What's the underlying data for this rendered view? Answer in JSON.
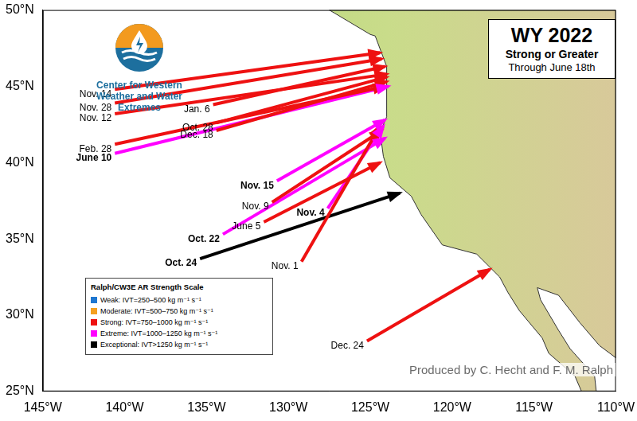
{
  "chart_data": {
    "type": "map",
    "title": "WY 2022",
    "subtitle": "Strong or Greater",
    "period": "Through June 18th",
    "logo_text": "Center for Western Weather and Water Extremes",
    "credit": "Produced by C. Hecht and F. M. Ralph",
    "legend_title": "Ralph/CW3E AR Strength Scale",
    "legend": "bottom left",
    "grid": false,
    "xlim": [
      -145,
      -110
    ],
    "xticks": [
      {
        "value": -145,
        "label": "145°W"
      },
      {
        "value": -140,
        "label": "140°W"
      },
      {
        "value": -135,
        "label": "135°W"
      },
      {
        "value": -130,
        "label": "130°W"
      },
      {
        "value": -125,
        "label": "125°W"
      },
      {
        "value": -120,
        "label": "120°W"
      },
      {
        "value": -115,
        "label": "115°W"
      },
      {
        "value": -110,
        "label": "110°W"
      }
    ],
    "ylim": [
      25,
      50
    ],
    "yticks": [
      {
        "value": 25,
        "label": "25°N"
      },
      {
        "value": 30,
        "label": "30°N"
      },
      {
        "value": 35,
        "label": "35°N"
      },
      {
        "value": 40,
        "label": "40°N"
      },
      {
        "value": 45,
        "label": "45°N"
      },
      {
        "value": 50,
        "label": "50°N"
      }
    ],
    "coastline": [
      [
        -127.5,
        50
      ],
      [
        -125.0,
        48.4
      ],
      [
        -124.7,
        48.3
      ],
      [
        -124.0,
        46.3
      ],
      [
        -124.0,
        43.0
      ],
      [
        -124.4,
        42.0
      ],
      [
        -124.2,
        40.4
      ],
      [
        -123.8,
        39.0
      ],
      [
        -122.5,
        37.8
      ],
      [
        -121.9,
        36.6
      ],
      [
        -120.6,
        34.6
      ],
      [
        -118.5,
        34.0
      ],
      [
        -117.1,
        32.5
      ],
      [
        -116.6,
        31.5
      ],
      [
        -115.9,
        30.3
      ],
      [
        -114.5,
        28.5
      ],
      [
        -114.1,
        27.5
      ],
      [
        -112.5,
        26.0
      ],
      [
        -112.1,
        25.0
      ],
      [
        -111.2,
        25.0
      ],
      [
        -111.3,
        26.0
      ],
      [
        -112.8,
        27.8
      ],
      [
        -113.5,
        29.0
      ],
      [
        -114.6,
        31.0
      ],
      [
        -114.8,
        31.8
      ],
      [
        -113.5,
        31.3
      ],
      [
        -112.2,
        29.5
      ],
      [
        -111.0,
        28.0
      ],
      [
        -110.0,
        27.2
      ],
      [
        -110.0,
        50.0
      ]
    ],
    "series": [
      {
        "name": "Weak: IVT=250–500 kg m⁻¹ s⁻¹",
        "color": "#1f77d0",
        "values": []
      },
      {
        "name": "Moderate: IVT=500–750 kg m⁻¹ s⁻¹",
        "color": "#f5a020",
        "values": []
      },
      {
        "name": "Strong: IVT=750–1000 kg m⁻¹ s⁻¹",
        "color": "#ee1111",
        "values": [
          {
            "label": "Nov. 14",
            "start": [
              -140.6,
              44.8
            ],
            "end": [
              -124.4,
              47.2
            ]
          },
          {
            "label": "Nov. 28",
            "start": [
              -140.6,
              43.9
            ],
            "end": [
              -124.3,
              46.8
            ]
          },
          {
            "label": "Jan. 6",
            "start": [
              -134.6,
              43.8
            ],
            "end": [
              -124.1,
              46.3
            ]
          },
          {
            "label": "Nov. 12",
            "start": [
              -140.6,
              43.2
            ],
            "end": [
              -124.0,
              45.8
            ]
          },
          {
            "label": "Oct. 28",
            "start": [
              -134.4,
              42.6
            ],
            "end": [
              -124.0,
              45.6
            ]
          },
          {
            "label": "Dec. 18",
            "start": [
              -134.4,
              42.1
            ],
            "end": [
              -124.0,
              45.3
            ]
          },
          {
            "label": "Feb. 28",
            "start": [
              -140.6,
              41.2
            ],
            "end": [
              -124.1,
              45.0
            ]
          },
          {
            "label": "Nov. 9",
            "start": [
              -131.0,
              37.4
            ],
            "end": [
              -124.3,
              42.1
            ]
          },
          {
            "label": "June 5",
            "start": [
              -131.5,
              36.1
            ],
            "end": [
              -124.4,
              40.0
            ]
          },
          {
            "label": "Nov. 1",
            "start": [
              -129.2,
              33.5
            ],
            "end": [
              -124.4,
              42.4
            ]
          },
          {
            "label": "Dec. 24",
            "start": [
              -125.2,
              28.3
            ],
            "end": [
              -117.7,
              33.0
            ]
          }
        ]
      },
      {
        "name": "Extreme: IVT=1000–1250 kg m⁻¹ s⁻¹",
        "color": "#ff00ff",
        "values": [
          {
            "label": "June 10",
            "start": [
              -140.6,
              40.6
            ],
            "end": [
              -123.9,
              45.0
            ]
          },
          {
            "label": "Nov. 15",
            "start": [
              -130.7,
              38.8
            ],
            "end": [
              -124.1,
              42.8
            ]
          },
          {
            "label": "Nov. 4",
            "start": [
              -127.6,
              37.0
            ],
            "end": [
              -124.2,
              42.4
            ]
          },
          {
            "label": "Oct. 22",
            "start": [
              -134.0,
              35.3
            ],
            "end": [
              -124.1,
              41.6
            ]
          }
        ]
      },
      {
        "name": "Exceptional: IVT>1250 kg m⁻¹ s⁻¹",
        "color": "#000000",
        "values": [
          {
            "label": "Oct. 24",
            "start": [
              -135.4,
              33.7
            ],
            "end": [
              -123.2,
              38.0
            ]
          }
        ]
      }
    ]
  }
}
